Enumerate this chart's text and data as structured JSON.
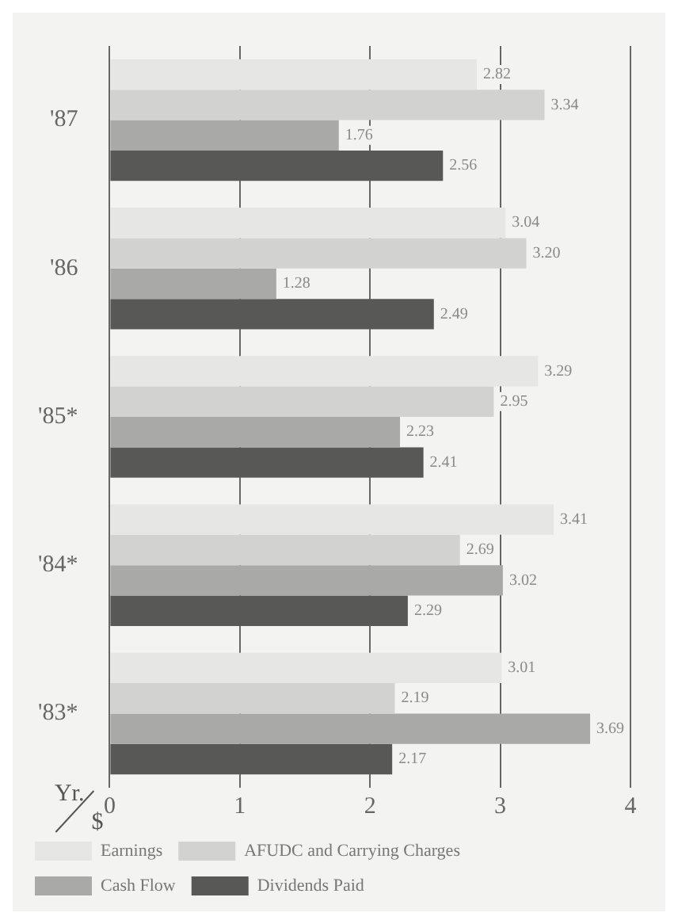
{
  "chart_data": {
    "type": "bar",
    "orientation": "horizontal",
    "xlabel": "$",
    "ylabel": "Yr.",
    "categories": [
      "'87",
      "'86",
      "'85*",
      "'84*",
      "'83*"
    ],
    "series": [
      {
        "name": "Earnings",
        "color": "#e6e6e4",
        "values": [
          2.82,
          3.04,
          3.29,
          3.41,
          3.01
        ],
        "value_labels": [
          "2.82",
          "3.04",
          "3.29",
          "3.41",
          "3.01"
        ]
      },
      {
        "name": "AFUDC and Carrying Charges",
        "color": "#d2d2d0",
        "values": [
          3.34,
          3.2,
          2.95,
          2.69,
          2.19
        ],
        "value_labels": [
          "3.34",
          "3.20",
          "2.95",
          "2.69",
          "2.19"
        ]
      },
      {
        "name": "Cash Flow",
        "color": "#a9a9a7",
        "values": [
          1.76,
          1.28,
          2.23,
          3.02,
          3.69
        ],
        "value_labels": [
          "1.76",
          "1.28",
          "2.23",
          "3.02",
          "3.69"
        ]
      },
      {
        "name": "Dividends Paid",
        "color": "#585856",
        "values": [
          2.56,
          2.49,
          2.41,
          2.29,
          2.17
        ],
        "value_labels": [
          "2.56",
          "2.49",
          "2.41",
          "2.29",
          "2.17"
        ]
      }
    ],
    "xlim": [
      0,
      4
    ],
    "xticks": [
      0,
      1,
      2,
      3,
      4
    ],
    "grid": "x",
    "legend": "bottom"
  }
}
